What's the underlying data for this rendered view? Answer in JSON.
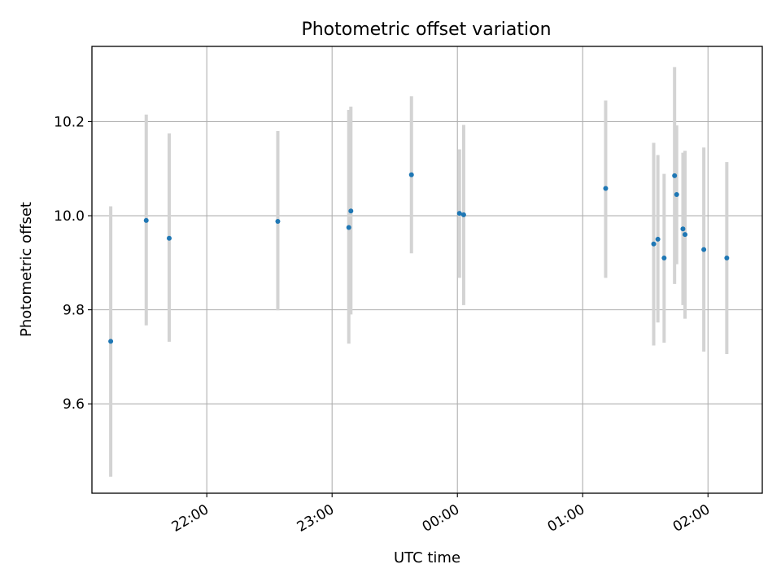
{
  "chart_data": {
    "type": "scatter",
    "title": "Photometric offset variation",
    "xlabel": "UTC time",
    "ylabel": "Photometric offset",
    "x_ticks": [
      "22:00",
      "23:00",
      "00:00",
      "01:00",
      "02:00"
    ],
    "y_ticks": [
      "9.6",
      "9.8",
      "10.0",
      "10.2"
    ],
    "ylim": [
      9.41,
      10.36
    ],
    "xlim": [
      "21:05",
      "02:26"
    ],
    "grid": true,
    "colors": {
      "points": "#1f77b4",
      "errorbars": "#d3d3d3"
    },
    "points": [
      {
        "x": "21:14",
        "y": 9.733,
        "yerr_low": 9.445,
        "yerr_high": 10.02
      },
      {
        "x": "21:31",
        "y": 9.99,
        "yerr_low": 9.767,
        "yerr_high": 10.215
      },
      {
        "x": "21:42",
        "y": 9.952,
        "yerr_low": 9.732,
        "yerr_high": 10.175
      },
      {
        "x": "22:34",
        "y": 9.988,
        "yerr_low": 9.799,
        "yerr_high": 10.18
      },
      {
        "x": "23:08",
        "y": 9.975,
        "yerr_low": 9.728,
        "yerr_high": 10.225
      },
      {
        "x": "23:09",
        "y": 10.01,
        "yerr_low": 9.79,
        "yerr_high": 10.232
      },
      {
        "x": "23:38",
        "y": 10.087,
        "yerr_low": 9.92,
        "yerr_high": 10.254
      },
      {
        "x": "00:01",
        "y": 10.005,
        "yerr_low": 9.868,
        "yerr_high": 10.141
      },
      {
        "x": "00:03",
        "y": 10.002,
        "yerr_low": 9.81,
        "yerr_high": 10.193
      },
      {
        "x": "01:11",
        "y": 10.058,
        "yerr_low": 9.868,
        "yerr_high": 10.245
      },
      {
        "x": "01:34",
        "y": 9.94,
        "yerr_low": 9.724,
        "yerr_high": 10.155
      },
      {
        "x": "01:36",
        "y": 9.95,
        "yerr_low": 9.773,
        "yerr_high": 10.129
      },
      {
        "x": "01:39",
        "y": 9.91,
        "yerr_low": 9.73,
        "yerr_high": 10.089
      },
      {
        "x": "01:44",
        "y": 10.085,
        "yerr_low": 9.855,
        "yerr_high": 10.316
      },
      {
        "x": "01:45",
        "y": 10.045,
        "yerr_low": 9.897,
        "yerr_high": 10.192
      },
      {
        "x": "01:48",
        "y": 9.972,
        "yerr_low": 9.81,
        "yerr_high": 10.134
      },
      {
        "x": "01:49",
        "y": 9.96,
        "yerr_low": 9.781,
        "yerr_high": 10.138
      },
      {
        "x": "01:58",
        "y": 9.928,
        "yerr_low": 9.711,
        "yerr_high": 10.145
      },
      {
        "x": "02:09",
        "y": 9.91,
        "yerr_low": 9.706,
        "yerr_high": 10.114
      }
    ]
  }
}
